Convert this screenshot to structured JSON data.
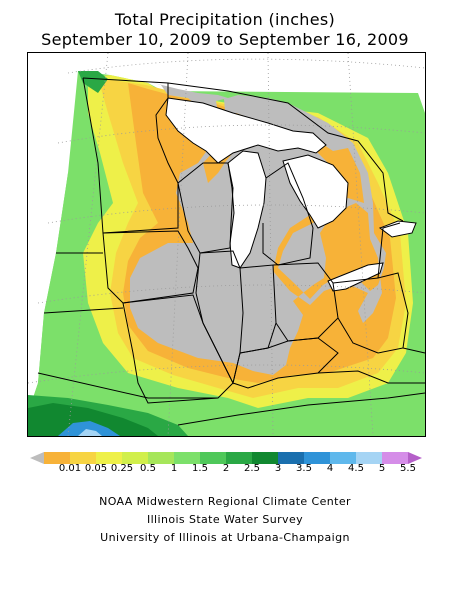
{
  "title": {
    "line1": "Total Precipitation (inches)",
    "line2": "September 10, 2009 to September 16, 2009"
  },
  "legend": {
    "tick_labels": [
      "0.01",
      "0.05",
      "0.25",
      "0.5",
      "1",
      "1.5",
      "2",
      "2.5",
      "3",
      "3.5",
      "4",
      "4.5",
      "5",
      "5.5"
    ],
    "colors": [
      "#bdbdbd",
      "#f7b238",
      "#f7d443",
      "#eef049",
      "#d1ef4b",
      "#a6e65a",
      "#7ce06a",
      "#4fc85a",
      "#2aa845",
      "#118830",
      "#1a6fae",
      "#2f93d8",
      "#5fb8ec",
      "#a5d4f4",
      "#d58de8",
      "#b55fc9"
    ]
  },
  "map": {
    "color_dry": "#bdbdbd",
    "color_0_01": "#f7b238",
    "color_0_05": "#f7d443",
    "color_0_25": "#eef049",
    "color_0_5": "#d1ef4b",
    "color_1": "#7ce06a",
    "color_2": "#2aa845",
    "color_3": "#118830",
    "color_4": "#2f93d8",
    "color_5": "#a5d4f4",
    "color_boundary": "#000000",
    "color_graticule": "#9a9a9a"
  },
  "credits": {
    "line1": "NOAA Midwestern Regional Climate Center",
    "line2": "Illinois State Water Survey",
    "line3": "University of Illinois at Urbana-Champaign"
  }
}
